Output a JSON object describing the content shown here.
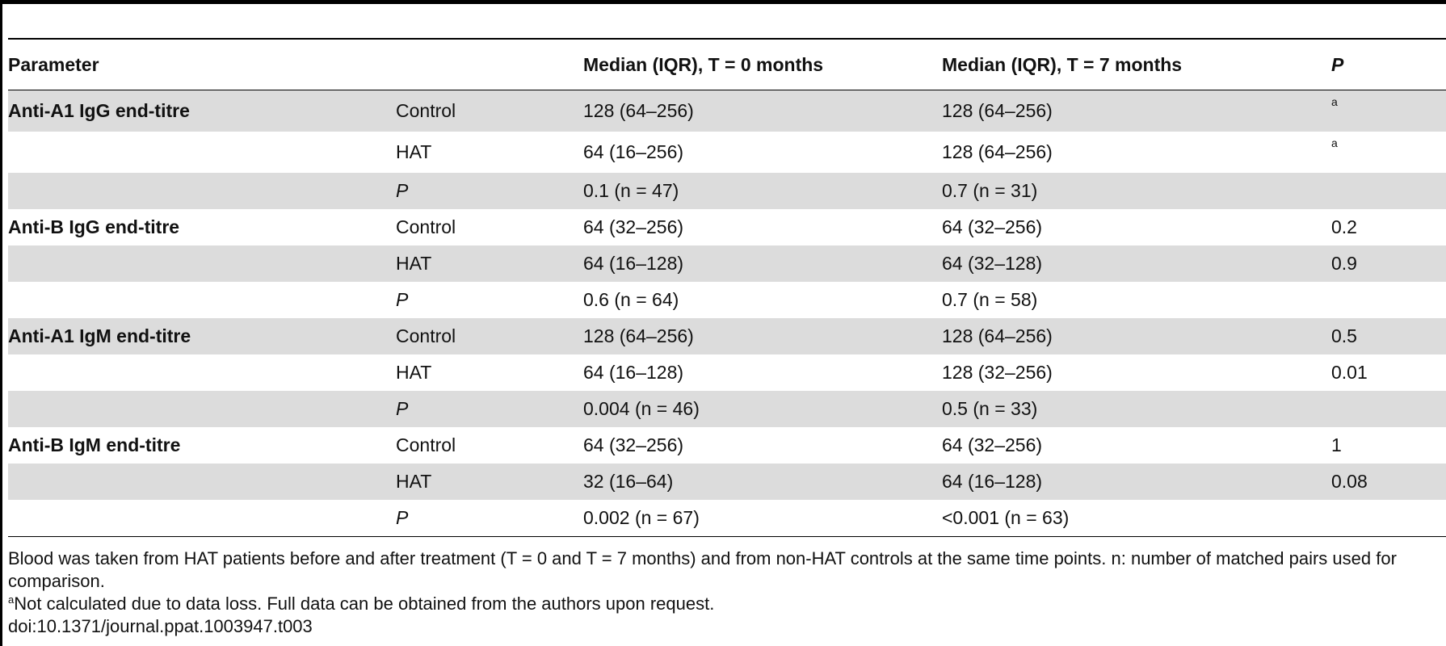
{
  "table": {
    "headers": {
      "parameter": "Parameter",
      "group": "",
      "t0": "Median (IQR), T = 0 months",
      "t7": "Median (IQR), T = 7 months",
      "p": "P"
    },
    "rows": [
      {
        "parameter": "Anti-A1 IgG end-titre",
        "group": "Control",
        "t0": "128 (64–256)",
        "t7": "128 (64–256)",
        "p": "a",
        "shaded": true
      },
      {
        "parameter": "",
        "group": "HAT",
        "t0": "64 (16–256)",
        "t7": "128 (64–256)",
        "p": "a",
        "shaded": false
      },
      {
        "parameter": "",
        "group": "P",
        "t0": "0.1 (n = 47)",
        "t7": "0.7 (n = 31)",
        "p": "",
        "shaded": true
      },
      {
        "parameter": "Anti-B IgG end-titre",
        "group": "Control",
        "t0": "64 (32–256)",
        "t7": "64 (32–256)",
        "p": "0.2",
        "shaded": false
      },
      {
        "parameter": "",
        "group": "HAT",
        "t0": "64 (16–128)",
        "t7": "64 (32–128)",
        "p": "0.9",
        "shaded": true
      },
      {
        "parameter": "",
        "group": "P",
        "t0": "0.6 (n = 64)",
        "t7": "0.7 (n = 58)",
        "p": "",
        "shaded": false
      },
      {
        "parameter": "Anti-A1 IgM end-titre",
        "group": "Control",
        "t0": "128 (64–256)",
        "t7": "128 (64–256)",
        "p": "0.5",
        "shaded": true
      },
      {
        "parameter": "",
        "group": "HAT",
        "t0": "64 (16–128)",
        "t7": "128 (32–256)",
        "p": "0.01",
        "shaded": false
      },
      {
        "parameter": "",
        "group": "P",
        "t0": "0.004 (n = 46)",
        "t7": "0.5 (n = 33)",
        "p": "",
        "shaded": true
      },
      {
        "parameter": "Anti-B IgM end-titre",
        "group": "Control",
        "t0": "64 (32–256)",
        "t7": "64 (32–256)",
        "p": "1",
        "shaded": false
      },
      {
        "parameter": "",
        "group": "HAT",
        "t0": "32 (16–64)",
        "t7": "64 (16–128)",
        "p": "0.08",
        "shaded": true
      },
      {
        "parameter": "",
        "group": "P",
        "t0": "0.002 (n = 67)",
        "t7": "<0.001 (n = 63)",
        "p": "",
        "shaded": false
      }
    ]
  },
  "footer": {
    "note_main": "Blood was taken from HAT patients before and after treatment (T = 0 and T = 7 months) and from non-HAT controls at the same time points. n: number of matched pairs used for comparison.",
    "note_a_mark": "a",
    "note_a_text": "Not calculated due to data loss. Full data can be obtained from the authors upon request.",
    "doi": "doi:10.1371/journal.ppat.1003947.t003"
  }
}
